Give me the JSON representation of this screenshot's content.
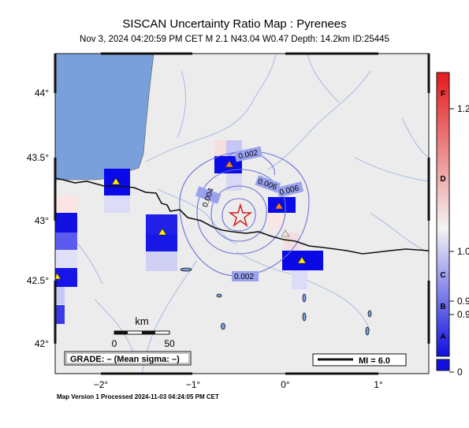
{
  "header": {
    "title": "SISCAN Uncertainty Ratio Map : Pyrenees",
    "subtitle": "Nov  3, 2024 04:20:59 PM CET   M 2.1   N43.04 W0.47   Depth: 14.2km   ID:25445"
  },
  "axes": {
    "lat_labels": [
      "44°",
      "43.5°",
      "43°",
      "42.5°",
      "42°"
    ],
    "lon_labels": [
      "−2°",
      "−1°",
      "0°",
      "1°"
    ]
  },
  "contours": {
    "labels": [
      "0.002",
      "0.004",
      "0.006",
      "0.006",
      "0.002"
    ]
  },
  "scalebar": {
    "unit": "km",
    "left": "0",
    "right": "50"
  },
  "grade": {
    "text": "GRADE: – (Mean sigma: –)"
  },
  "intensity_legend": {
    "text": "MI = 6.0"
  },
  "colorbar": {
    "letters": [
      "F",
      "D",
      "C",
      "B",
      "A"
    ],
    "values": [
      "1.2",
      "1.0",
      "0.9",
      "0.9",
      "0"
    ],
    "colors": {
      "top": "#e41a1c",
      "mid": "#f4f4f4",
      "bottom": "#1010e0"
    }
  },
  "footer": {
    "text": "Map Version 1 Processed 2024-11-03 04:24:05 PM CET"
  },
  "colors": {
    "sea": "#7aa0dc",
    "land": "#ececec",
    "epicenter": "#d42020",
    "station": "#ffee00"
  }
}
